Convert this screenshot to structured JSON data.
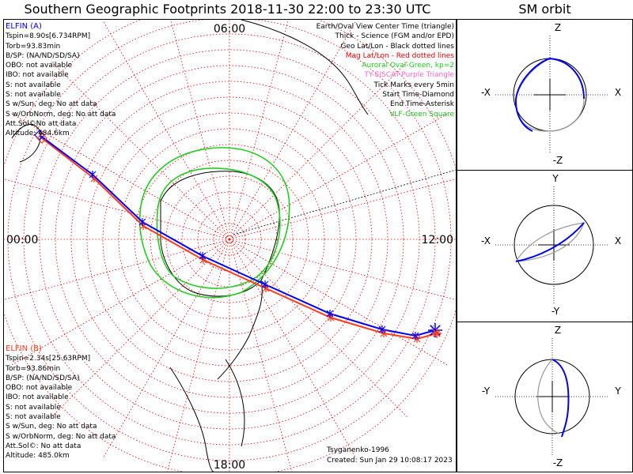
{
  "title": "Southern Geographic Footprints 2018-11-30 22:00 to 23:30 UTC",
  "orbit_title": "SM orbit",
  "colors": {
    "elfin_a": "#0000ee",
    "elfin_b": "#ff3b1f",
    "geo_grid": "#000000",
    "mag_grid": "#ee0000",
    "auroral_oval": "#22cc22",
    "eiscat": "#ff66cc",
    "vlf": "#22bb22",
    "orbit_reference": "#999999"
  },
  "map": {
    "mlt_labels": {
      "top": "06:00",
      "left": "00:00",
      "right": "12:00",
      "bottom": "18:00"
    }
  },
  "elfin_a": {
    "header": "ELFIN (A)",
    "lines": [
      "Tspin=8.90s[6.734RPM]",
      "Torb=93.83min",
      "B/SP: (NA/ND/SD/SA)",
      "OBO: not available",
      "IBO: not available",
      "S: not available",
      "S: not available",
      "S w/Sun, deg: No att data",
      "S w/OrbNorm, deg: No att data",
      "Att.Sol©No att data",
      "Altitude: 484.6km"
    ]
  },
  "elfin_b": {
    "header": "ELFIN (B)",
    "lines": [
      "Tspin=2.34s[25.63RPM]",
      "Torb=93.86min",
      "B/SP: (NA/ND/SD/SA)",
      "OBO: not available",
      "IBO: not available",
      "S: not available",
      "S: not available",
      "S w/Sun, deg: No att data",
      "S w/OrbNorm, deg: No att data",
      "Att.Sol©: No att data",
      "Altitude: 485.0km"
    ]
  },
  "legend": [
    "Earth/Oval View Center Time (triangle)",
    "Thick - Science (FGM and/or EPD)",
    "Geo Lat/Lon - Black dotted lines",
    "Mag Lat/Lon - Red dotted lines",
    "Auroral Oval-Green, kp=2",
    "TY-EISCAT-Purple Triangle",
    "Tick Marks every 5min",
    "Start Time-Diamond",
    "End Time-Asterisk",
    "VLF-Green Square"
  ],
  "credit": {
    "model": "Tsyganenko-1996",
    "created": "Created: Sun Jan 29 10:08:17 2023"
  },
  "orbit_panels": [
    {
      "y_top": "Z",
      "y_bottom": "-Z",
      "x_left": "-X",
      "x_right": "X"
    },
    {
      "y_top": "Y",
      "y_bottom": "-Y",
      "x_left": "-X",
      "x_right": "X"
    },
    {
      "y_top": "Z",
      "y_bottom": "-Z",
      "x_left": "-Y",
      "x_right": "Y"
    }
  ]
}
